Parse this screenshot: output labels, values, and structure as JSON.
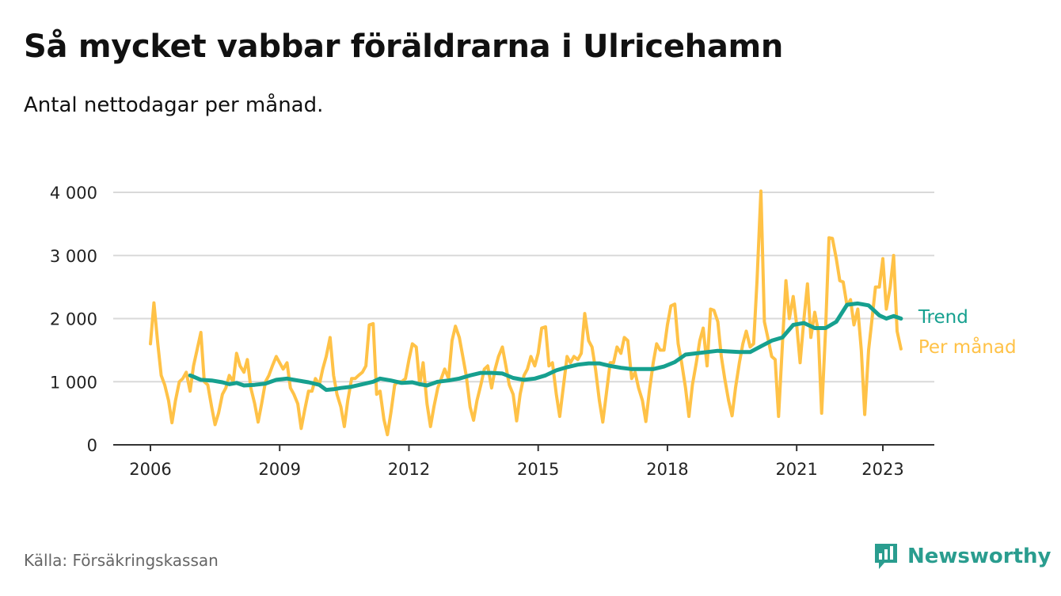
{
  "header": {
    "title": "Så mycket vabbar föräldrarna i Ulricehamn",
    "subtitle": "Antal nettodagar per månad."
  },
  "footer": {
    "source": "Källa: Försäkringskassan",
    "brand": "Newsworthy"
  },
  "colors": {
    "monthly": "#ffc247",
    "trend": "#16a08f",
    "grid": "#d9d9d9",
    "axis": "#333333",
    "brand": "#2a9d8f"
  },
  "chart_data": {
    "type": "line",
    "title": "Så mycket vabbar föräldrarna i Ulricehamn",
    "subtitle": "Antal nettodagar per månad.",
    "xlabel": "",
    "ylabel": "",
    "xlim": [
      2005.2,
      2024.2
    ],
    "ylim": [
      0,
      4000
    ],
    "x_ticks": [
      2006,
      2009,
      2012,
      2015,
      2018,
      2021,
      2023
    ],
    "x_tick_labels": [
      "2006",
      "2009",
      "2012",
      "2015",
      "2018",
      "2021",
      "2023"
    ],
    "y_ticks": [
      0,
      1000,
      2000,
      3000,
      4000
    ],
    "y_tick_labels": [
      "0",
      "1 000",
      "2 000",
      "3 000",
      "4 000"
    ],
    "grid": true,
    "legend": "inline-right",
    "series": [
      {
        "name": "Per månad",
        "color": "#ffc247",
        "points": [
          [
            2006.0,
            1600
          ],
          [
            2006.08,
            2250
          ],
          [
            2006.17,
            1600
          ],
          [
            2006.25,
            1100
          ],
          [
            2006.33,
            950
          ],
          [
            2006.42,
            700
          ],
          [
            2006.5,
            350
          ],
          [
            2006.58,
            700
          ],
          [
            2006.67,
            1000
          ],
          [
            2006.75,
            1050
          ],
          [
            2006.83,
            1150
          ],
          [
            2006.92,
            850
          ],
          [
            2007.0,
            1250
          ],
          [
            2007.08,
            1500
          ],
          [
            2007.17,
            1780
          ],
          [
            2007.25,
            1000
          ],
          [
            2007.33,
            950
          ],
          [
            2007.42,
            600
          ],
          [
            2007.5,
            320
          ],
          [
            2007.58,
            500
          ],
          [
            2007.67,
            800
          ],
          [
            2007.75,
            900
          ],
          [
            2007.83,
            1100
          ],
          [
            2007.92,
            1000
          ],
          [
            2008.0,
            1450
          ],
          [
            2008.08,
            1250
          ],
          [
            2008.17,
            1150
          ],
          [
            2008.25,
            1350
          ],
          [
            2008.33,
            900
          ],
          [
            2008.42,
            650
          ],
          [
            2008.5,
            360
          ],
          [
            2008.58,
            650
          ],
          [
            2008.67,
            1000
          ],
          [
            2008.75,
            1100
          ],
          [
            2008.83,
            1250
          ],
          [
            2008.92,
            1400
          ],
          [
            2009.0,
            1300
          ],
          [
            2009.08,
            1200
          ],
          [
            2009.17,
            1300
          ],
          [
            2009.25,
            900
          ],
          [
            2009.33,
            800
          ],
          [
            2009.42,
            650
          ],
          [
            2009.5,
            260
          ],
          [
            2009.58,
            550
          ],
          [
            2009.67,
            850
          ],
          [
            2009.75,
            850
          ],
          [
            2009.83,
            1050
          ],
          [
            2009.92,
            950
          ],
          [
            2010.0,
            1200
          ],
          [
            2010.08,
            1400
          ],
          [
            2010.17,
            1700
          ],
          [
            2010.25,
            1100
          ],
          [
            2010.33,
            800
          ],
          [
            2010.42,
            600
          ],
          [
            2010.5,
            290
          ],
          [
            2010.58,
            700
          ],
          [
            2010.67,
            1050
          ],
          [
            2010.75,
            1050
          ],
          [
            2010.83,
            1100
          ],
          [
            2010.92,
            1150
          ],
          [
            2011.0,
            1250
          ],
          [
            2011.08,
            1900
          ],
          [
            2011.17,
            1920
          ],
          [
            2011.25,
            800
          ],
          [
            2011.33,
            850
          ],
          [
            2011.42,
            400
          ],
          [
            2011.5,
            160
          ],
          [
            2011.58,
            500
          ],
          [
            2011.67,
            950
          ],
          [
            2011.75,
            1000
          ],
          [
            2011.83,
            1000
          ],
          [
            2011.92,
            1050
          ],
          [
            2012.0,
            1350
          ],
          [
            2012.08,
            1600
          ],
          [
            2012.17,
            1550
          ],
          [
            2012.25,
            950
          ],
          [
            2012.33,
            1300
          ],
          [
            2012.42,
            650
          ],
          [
            2012.5,
            290
          ],
          [
            2012.58,
            600
          ],
          [
            2012.67,
            900
          ],
          [
            2012.75,
            1050
          ],
          [
            2012.83,
            1200
          ],
          [
            2012.92,
            1050
          ],
          [
            2013.0,
            1650
          ],
          [
            2013.08,
            1880
          ],
          [
            2013.17,
            1700
          ],
          [
            2013.25,
            1400
          ],
          [
            2013.33,
            1100
          ],
          [
            2013.42,
            600
          ],
          [
            2013.5,
            390
          ],
          [
            2013.58,
            700
          ],
          [
            2013.67,
            950
          ],
          [
            2013.75,
            1200
          ],
          [
            2013.83,
            1250
          ],
          [
            2013.92,
            900
          ],
          [
            2014.0,
            1200
          ],
          [
            2014.08,
            1400
          ],
          [
            2014.17,
            1550
          ],
          [
            2014.25,
            1250
          ],
          [
            2014.33,
            950
          ],
          [
            2014.42,
            800
          ],
          [
            2014.5,
            380
          ],
          [
            2014.58,
            800
          ],
          [
            2014.67,
            1100
          ],
          [
            2014.75,
            1200
          ],
          [
            2014.83,
            1400
          ],
          [
            2014.92,
            1250
          ],
          [
            2015.0,
            1450
          ],
          [
            2015.08,
            1850
          ],
          [
            2015.17,
            1870
          ],
          [
            2015.25,
            1250
          ],
          [
            2015.33,
            1300
          ],
          [
            2015.42,
            800
          ],
          [
            2015.5,
            450
          ],
          [
            2015.58,
            900
          ],
          [
            2015.67,
            1400
          ],
          [
            2015.75,
            1300
          ],
          [
            2015.83,
            1400
          ],
          [
            2015.92,
            1350
          ],
          [
            2016.0,
            1450
          ],
          [
            2016.08,
            2080
          ],
          [
            2016.17,
            1650
          ],
          [
            2016.25,
            1550
          ],
          [
            2016.33,
            1200
          ],
          [
            2016.42,
            700
          ],
          [
            2016.5,
            360
          ],
          [
            2016.58,
            800
          ],
          [
            2016.67,
            1300
          ],
          [
            2016.75,
            1300
          ],
          [
            2016.83,
            1550
          ],
          [
            2016.92,
            1450
          ],
          [
            2017.0,
            1700
          ],
          [
            2017.08,
            1650
          ],
          [
            2017.17,
            1050
          ],
          [
            2017.25,
            1150
          ],
          [
            2017.33,
            900
          ],
          [
            2017.42,
            700
          ],
          [
            2017.5,
            370
          ],
          [
            2017.58,
            850
          ],
          [
            2017.67,
            1300
          ],
          [
            2017.75,
            1600
          ],
          [
            2017.83,
            1500
          ],
          [
            2017.92,
            1500
          ],
          [
            2018.0,
            1900
          ],
          [
            2018.08,
            2200
          ],
          [
            2018.17,
            2230
          ],
          [
            2018.25,
            1600
          ],
          [
            2018.33,
            1300
          ],
          [
            2018.42,
            900
          ],
          [
            2018.5,
            450
          ],
          [
            2018.58,
            950
          ],
          [
            2018.67,
            1300
          ],
          [
            2018.75,
            1650
          ],
          [
            2018.83,
            1850
          ],
          [
            2018.92,
            1250
          ],
          [
            2019.0,
            2150
          ],
          [
            2019.08,
            2130
          ],
          [
            2019.17,
            1950
          ],
          [
            2019.25,
            1400
          ],
          [
            2019.33,
            1050
          ],
          [
            2019.42,
            700
          ],
          [
            2019.5,
            460
          ],
          [
            2019.58,
            900
          ],
          [
            2019.67,
            1300
          ],
          [
            2019.75,
            1600
          ],
          [
            2019.83,
            1800
          ],
          [
            2019.92,
            1550
          ],
          [
            2020.0,
            1600
          ],
          [
            2020.08,
            2600
          ],
          [
            2020.17,
            4020
          ],
          [
            2020.25,
            1950
          ],
          [
            2020.33,
            1700
          ],
          [
            2020.42,
            1400
          ],
          [
            2020.5,
            1350
          ],
          [
            2020.58,
            450
          ],
          [
            2020.67,
            1600
          ],
          [
            2020.75,
            2600
          ],
          [
            2020.83,
            2000
          ],
          [
            2020.92,
            2350
          ],
          [
            2021.0,
            1900
          ],
          [
            2021.08,
            1300
          ],
          [
            2021.17,
            2000
          ],
          [
            2021.25,
            2550
          ],
          [
            2021.33,
            1700
          ],
          [
            2021.42,
            2100
          ],
          [
            2021.5,
            1800
          ],
          [
            2021.58,
            500
          ],
          [
            2021.67,
            1800
          ],
          [
            2021.75,
            3280
          ],
          [
            2021.83,
            3270
          ],
          [
            2021.92,
            2950
          ],
          [
            2022.0,
            2600
          ],
          [
            2022.08,
            2580
          ],
          [
            2022.17,
            2200
          ],
          [
            2022.25,
            2300
          ],
          [
            2022.33,
            1900
          ],
          [
            2022.42,
            2150
          ],
          [
            2022.5,
            1500
          ],
          [
            2022.58,
            480
          ],
          [
            2022.67,
            1500
          ],
          [
            2022.75,
            2000
          ],
          [
            2022.83,
            2500
          ],
          [
            2022.92,
            2500
          ],
          [
            2023.0,
            2950
          ],
          [
            2023.08,
            2150
          ],
          [
            2023.17,
            2500
          ],
          [
            2023.25,
            3000
          ],
          [
            2023.33,
            1800
          ],
          [
            2023.42,
            1520
          ]
        ]
      },
      {
        "name": "Trend",
        "color": "#16a08f",
        "points": [
          [
            2006.92,
            1100
          ],
          [
            2007.0,
            1080
          ],
          [
            2007.17,
            1030
          ],
          [
            2007.42,
            1020
          ],
          [
            2007.67,
            990
          ],
          [
            2007.83,
            960
          ],
          [
            2008.0,
            980
          ],
          [
            2008.17,
            940
          ],
          [
            2008.42,
            950
          ],
          [
            2008.67,
            970
          ],
          [
            2008.92,
            1030
          ],
          [
            2009.17,
            1050
          ],
          [
            2009.42,
            1020
          ],
          [
            2009.67,
            990
          ],
          [
            2009.92,
            950
          ],
          [
            2010.08,
            870
          ],
          [
            2010.25,
            880
          ],
          [
            2010.42,
            900
          ],
          [
            2010.67,
            920
          ],
          [
            2010.92,
            960
          ],
          [
            2011.17,
            1000
          ],
          [
            2011.33,
            1050
          ],
          [
            2011.58,
            1020
          ],
          [
            2011.83,
            980
          ],
          [
            2012.08,
            990
          ],
          [
            2012.25,
            960
          ],
          [
            2012.42,
            940
          ],
          [
            2012.67,
            1000
          ],
          [
            2012.92,
            1020
          ],
          [
            2013.17,
            1050
          ],
          [
            2013.42,
            1100
          ],
          [
            2013.67,
            1140
          ],
          [
            2013.92,
            1140
          ],
          [
            2014.17,
            1130
          ],
          [
            2014.42,
            1060
          ],
          [
            2014.67,
            1030
          ],
          [
            2014.92,
            1050
          ],
          [
            2015.17,
            1100
          ],
          [
            2015.42,
            1180
          ],
          [
            2015.67,
            1230
          ],
          [
            2015.92,
            1270
          ],
          [
            2016.17,
            1290
          ],
          [
            2016.42,
            1290
          ],
          [
            2016.67,
            1250
          ],
          [
            2016.92,
            1220
          ],
          [
            2017.17,
            1200
          ],
          [
            2017.42,
            1200
          ],
          [
            2017.67,
            1200
          ],
          [
            2017.92,
            1240
          ],
          [
            2018.17,
            1310
          ],
          [
            2018.42,
            1430
          ],
          [
            2018.67,
            1450
          ],
          [
            2018.92,
            1470
          ],
          [
            2019.17,
            1490
          ],
          [
            2019.42,
            1480
          ],
          [
            2019.67,
            1470
          ],
          [
            2019.92,
            1470
          ],
          [
            2020.17,
            1560
          ],
          [
            2020.42,
            1650
          ],
          [
            2020.67,
            1700
          ],
          [
            2020.92,
            1900
          ],
          [
            2021.17,
            1930
          ],
          [
            2021.42,
            1850
          ],
          [
            2021.67,
            1850
          ],
          [
            2021.92,
            1950
          ],
          [
            2022.17,
            2220
          ],
          [
            2022.42,
            2240
          ],
          [
            2022.67,
            2210
          ],
          [
            2022.92,
            2050
          ],
          [
            2023.08,
            2000
          ],
          [
            2023.25,
            2040
          ],
          [
            2023.42,
            2000
          ]
        ]
      }
    ]
  }
}
